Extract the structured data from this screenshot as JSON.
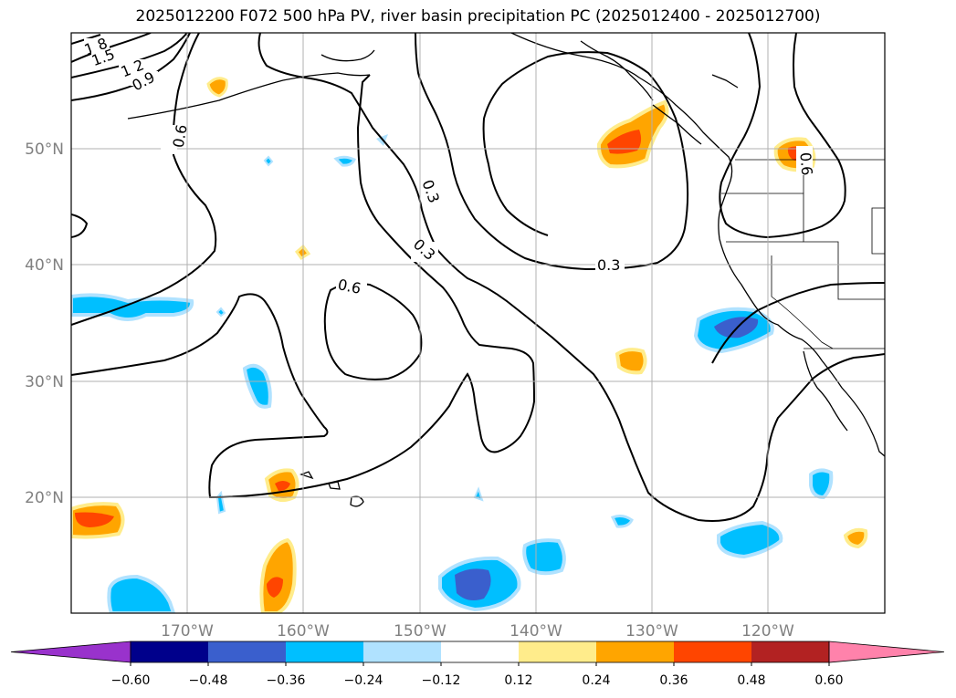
{
  "title": "2025012200 F072 500 hPa PV, river basin precipitation PC (2025012400 - 2025012700)",
  "map": {
    "lon_ticks": [
      "170°W",
      "160°W",
      "150°W",
      "140°W",
      "130°W",
      "120°W"
    ],
    "lat_ticks": [
      "50°N",
      "40°N",
      "30°N",
      "20°N"
    ],
    "contour_labels": [
      "1.8",
      "1.5",
      "1.2",
      "0.9",
      "0.6",
      "0.3",
      "0.3",
      "0.3",
      "0.6",
      "0.6"
    ],
    "colors": {
      "grid": "#b0b0b0",
      "tick_text": "#808080",
      "contour": "#000000"
    }
  },
  "colorbar": {
    "tick_labels": [
      "−0.60",
      "−0.48",
      "−0.36",
      "−0.24",
      "−0.12",
      "0.12",
      "0.24",
      "0.36",
      "0.48",
      "0.60"
    ],
    "colors": [
      "#9932cc",
      "#00008b",
      "#3a5fcd",
      "#00bfff",
      "#b0e2ff",
      "#ffffff",
      "#ffec8b",
      "#ffa500",
      "#ff4500",
      "#b22222",
      "#ff82ab"
    ]
  }
}
